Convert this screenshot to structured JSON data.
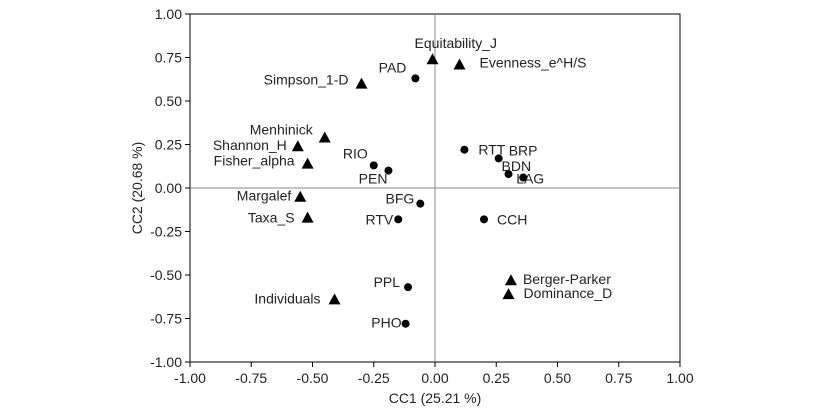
{
  "chart_data": {
    "type": "scatter",
    "title": "",
    "xlabel": "CC1 (25.21 %)",
    "ylabel": "CC2 (20.68 %)",
    "xlim": [
      -1.0,
      1.0
    ],
    "ylim": [
      -1.0,
      1.0
    ],
    "xticks": [
      "-1.00",
      "-0.75",
      "-0.50",
      "-0.25",
      "0.00",
      "0.25",
      "0.50",
      "0.75",
      "1.00"
    ],
    "yticks": [
      "1.00",
      "0.75",
      "0.50",
      "0.25",
      "0.00",
      "-0.25",
      "-0.50",
      "-0.75",
      "-1.00"
    ],
    "grid": false,
    "series": [
      {
        "marker": "circle",
        "points": [
          {
            "label": "PAD",
            "x": -0.08,
            "y": 0.63
          },
          {
            "label": "RIO",
            "x": -0.25,
            "y": 0.13
          },
          {
            "label": "PEN",
            "x": -0.19,
            "y": 0.1
          },
          {
            "label": "RTT",
            "x": 0.12,
            "y": 0.22
          },
          {
            "label": "BRP",
            "x": 0.26,
            "y": 0.17
          },
          {
            "label": "BDN",
            "x": 0.3,
            "y": 0.08
          },
          {
            "label": "LAG",
            "x": 0.36,
            "y": 0.06
          },
          {
            "label": "BFG",
            "x": -0.06,
            "y": -0.09
          },
          {
            "label": "RTV",
            "x": -0.15,
            "y": -0.18
          },
          {
            "label": "CCH",
            "x": 0.2,
            "y": -0.18
          },
          {
            "label": "PPL",
            "x": -0.11,
            "y": -0.57
          },
          {
            "label": "PHO",
            "x": -0.12,
            "y": -0.78
          }
        ]
      },
      {
        "marker": "triangle",
        "points": [
          {
            "label": "Equitability_J",
            "x": -0.01,
            "y": 0.74
          },
          {
            "label": "Evenness_e^H/S",
            "x": 0.1,
            "y": 0.71
          },
          {
            "label": "Simpson_1-D",
            "x": -0.3,
            "y": 0.6
          },
          {
            "label": "Menhinick",
            "x": -0.45,
            "y": 0.29
          },
          {
            "label": "Shannon_H",
            "x": -0.56,
            "y": 0.24
          },
          {
            "label": "Fisher_alpha",
            "x": -0.52,
            "y": 0.14
          },
          {
            "label": "Margalef",
            "x": -0.55,
            "y": -0.05
          },
          {
            "label": "Taxa_S",
            "x": -0.52,
            "y": -0.17
          },
          {
            "label": "Individuals",
            "x": -0.41,
            "y": -0.64
          },
          {
            "label": "Berger-Parker",
            "x": 0.31,
            "y": -0.53
          },
          {
            "label": "Dominance_D",
            "x": 0.3,
            "y": -0.61
          }
        ]
      }
    ]
  }
}
